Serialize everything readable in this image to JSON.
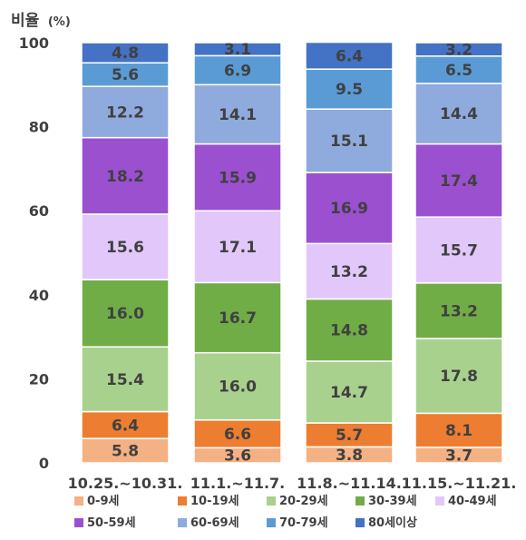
{
  "chart_data": {
    "type": "bar",
    "stacked": true,
    "ylabel": "비율",
    "ylabel_unit": "(%)",
    "ylim": [
      0,
      100
    ],
    "yticks": [
      0,
      20,
      40,
      60,
      80,
      100
    ],
    "grid": false,
    "legend_position": "bottom",
    "categories": [
      "10.25.~10.31.",
      "11.1.~11.7.",
      "11.8.~11.14.",
      "11.15.~11.21."
    ],
    "series": [
      {
        "name": "0-9세",
        "color": "#f4b183",
        "values": [
          5.8,
          3.6,
          3.8,
          3.7
        ]
      },
      {
        "name": "10-19세",
        "color": "#ed7d31",
        "values": [
          6.4,
          6.6,
          5.7,
          8.1
        ]
      },
      {
        "name": "20-29세",
        "color": "#a9d18e",
        "values": [
          15.4,
          16.0,
          14.7,
          17.8
        ]
      },
      {
        "name": "30-39세",
        "color": "#70ad47",
        "values": [
          16.0,
          16.7,
          14.8,
          13.2
        ]
      },
      {
        "name": "40-49세",
        "color": "#e2c8fa",
        "values": [
          15.6,
          17.1,
          13.2,
          15.7
        ]
      },
      {
        "name": "50-59세",
        "color": "#9b50cf",
        "values": [
          18.2,
          15.9,
          16.9,
          17.4
        ]
      },
      {
        "name": "60-69세",
        "color": "#8faadc",
        "values": [
          12.2,
          14.1,
          15.1,
          14.4
        ]
      },
      {
        "name": "70-79세",
        "color": "#5b9bd5",
        "values": [
          5.6,
          6.9,
          9.5,
          6.5
        ]
      },
      {
        "name": "80세이상",
        "color": "#4472c4",
        "values": [
          4.8,
          3.1,
          6.4,
          3.2
        ]
      }
    ]
  }
}
